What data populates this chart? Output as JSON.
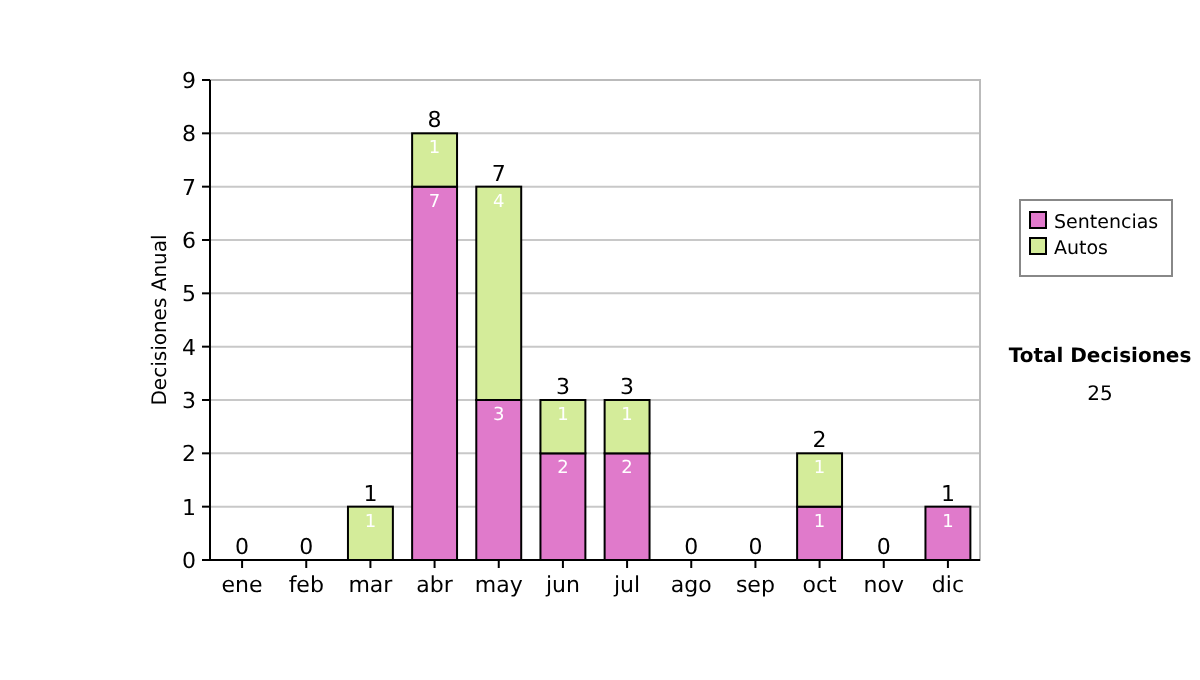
{
  "chart_data": {
    "type": "bar",
    "stacked": true,
    "ylabel": "Decisiones Anual",
    "categories": [
      "ene",
      "feb",
      "mar",
      "abr",
      "may",
      "jun",
      "jul",
      "ago",
      "sep",
      "oct",
      "nov",
      "dic"
    ],
    "series": [
      {
        "name": "Sentencias",
        "color": "#e07acb",
        "values": [
          0,
          0,
          0,
          7,
          3,
          2,
          2,
          0,
          0,
          1,
          0,
          1
        ],
        "value_labels": [
          null,
          null,
          null,
          "7",
          "3",
          "2",
          "2",
          null,
          null,
          "1",
          null,
          "1"
        ]
      },
      {
        "name": "Autos",
        "color": "#d4ec9a",
        "values": [
          0,
          0,
          1,
          1,
          4,
          1,
          1,
          0,
          0,
          1,
          0,
          0
        ],
        "value_labels": [
          null,
          null,
          "1",
          "1",
          "4",
          "1",
          "1",
          null,
          null,
          "1",
          null,
          null
        ]
      }
    ],
    "totals": [
      "0",
      "0",
      "1",
      "8",
      "7",
      "3",
      "3",
      "0",
      "0",
      "2",
      "0",
      "1"
    ],
    "ylim": [
      0,
      9
    ],
    "yticks": [
      0,
      1,
      2,
      3,
      4,
      5,
      6,
      7,
      8,
      9
    ],
    "grid": "y",
    "legend": "right",
    "annotations": [
      "Total Decisiones",
      "25"
    ]
  }
}
